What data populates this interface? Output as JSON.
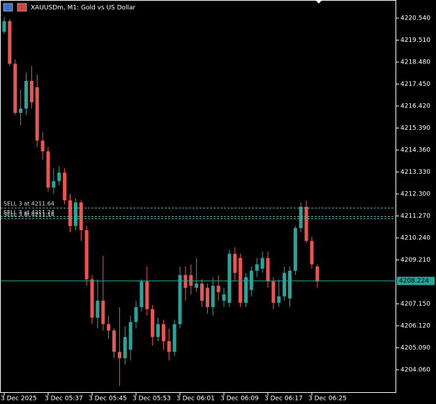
{
  "chart_data": {
    "type": "candlestick",
    "title": "XAUUSDm, M1:  Gold vs US Dollar",
    "categories": [
      "3 Dec 2025",
      null,
      null,
      null,
      null,
      null,
      null,
      null,
      "3 Dec 05:37",
      null,
      null,
      null,
      null,
      null,
      null,
      null,
      "3 Dec 05:45",
      null,
      null,
      null,
      null,
      null,
      null,
      null,
      "3 Dec 05:53",
      null,
      null,
      null,
      null,
      null,
      null,
      null,
      "3 Dec 06:01",
      null,
      null,
      null,
      null,
      null,
      null,
      null,
      "3 Dec 06:09",
      null,
      null,
      null,
      null,
      null,
      null,
      null,
      "3 Dec 06:17",
      null,
      null,
      null,
      null,
      null,
      null,
      null,
      "3 Dec 06:25",
      null
    ],
    "open": [
      4219.9,
      4220.4,
      4218.4,
      4216.1,
      4216.3,
      4217.6,
      4217.3,
      4214.8,
      4214.3,
      4212.6,
      4212.9,
      4213.3,
      4212.0,
      4210.8,
      4211.9,
      4210.6,
      4208.3,
      4206.5,
      4207.3,
      4206.2,
      4205.9,
      4204.9,
      4204.6,
      4205.0,
      4206.3,
      4207.0,
      4208.2,
      4206.9,
      4205.6,
      4206.2,
      4205.4,
      4204.9,
      4206.2,
      4208.5,
      4208.5,
      4207.9,
      4208.1,
      4207.9,
      4207.0,
      4208.0,
      4207.3,
      4207.2,
      4209.5,
      4209.3,
      4207.2,
      4207.8,
      4208.7,
      4208.8,
      4209.3,
      4208.2,
      4207.2,
      4207.5,
      4207.4,
      4208.7,
      4210.7,
      4211.7,
      4210.1,
      4208.9
    ],
    "high": [
      4220.6,
      4220.5,
      4218.6,
      4217.2,
      4218.0,
      4218.3,
      4217.9,
      4215.2,
      4214.5,
      4213.5,
      4213.6,
      4213.5,
      4212.3,
      4212.1,
      4212.0,
      4210.8,
      4208.5,
      4208.3,
      4209.4,
      4206.6,
      4206.0,
      4207.0,
      4206.1,
      4206.6,
      4207.3,
      4208.3,
      4208.9,
      4207.1,
      4206.5,
      4206.4,
      4206.0,
      4206.4,
      4208.9,
      4208.9,
      4209.0,
      4209.3,
      4208.3,
      4208.1,
      4208.4,
      4208.5,
      4207.9,
      4209.7,
      4209.8,
      4209.5,
      4208.6,
      4208.9,
      4209.3,
      4209.6,
      4209.6,
      4208.4,
      4208.3,
      4208.9,
      4208.9,
      4210.8,
      4211.9,
      4212.0,
      4210.3,
      4209.0
    ],
    "low": [
      4219.8,
      4218.3,
      4216.0,
      4215.5,
      4216.0,
      4216.3,
      4214.5,
      4213.9,
      4212.4,
      4212.3,
      4212.7,
      4211.8,
      4210.5,
      4210.6,
      4210.1,
      4208.0,
      4206.2,
      4206.0,
      4205.9,
      4205.5,
      4204.6,
      4203.3,
      4204.3,
      4204.5,
      4206.0,
      4206.8,
      4206.6,
      4205.2,
      4205.4,
      4205.0,
      4204.5,
      4204.7,
      4206.0,
      4207.3,
      4207.6,
      4207.7,
      4207.0,
      4206.7,
      4206.6,
      4207.3,
      4207.0,
      4207.0,
      4208.2,
      4207.0,
      4207.0,
      4207.5,
      4208.4,
      4208.6,
      4207.9,
      4206.9,
      4207.0,
      4207.3,
      4207.0,
      4208.5,
      4210.5,
      4210.0,
      4208.8,
      4207.9
    ],
    "close": [
      4220.4,
      4218.4,
      4216.1,
      4216.3,
      4217.6,
      4216.6,
      4214.8,
      4214.3,
      4212.6,
      4212.9,
      4213.3,
      4212.0,
      4210.8,
      4211.9,
      4210.6,
      4208.3,
      4206.5,
      4207.3,
      4206.2,
      4205.9,
      4204.9,
      4204.6,
      4205.6,
      4206.3,
      4207.0,
      4208.2,
      4206.9,
      4205.6,
      4206.2,
      4205.4,
      4204.9,
      4206.2,
      4208.5,
      4207.9,
      4208.0,
      4208.1,
      4207.3,
      4207.0,
      4208.0,
      4207.7,
      4207.6,
      4209.5,
      4208.6,
      4207.2,
      4208.4,
      4208.7,
      4209.0,
      4209.3,
      4208.2,
      4207.2,
      4207.5,
      4208.6,
      4208.7,
      4210.7,
      4211.7,
      4210.1,
      4209.0,
      4208.2
    ],
    "up_color": "#26a69a",
    "down_color": "#ef5350",
    "ylim": [
      4202.98,
      4221.39
    ],
    "yticks": [
      {
        "value": 4220.54,
        "label": "4220.540"
      },
      {
        "value": 4219.51,
        "label": "4219.510"
      },
      {
        "value": 4218.48,
        "label": "4218.480"
      },
      {
        "value": 4217.45,
        "label": "4217.450"
      },
      {
        "value": 4216.42,
        "label": "4216.420"
      },
      {
        "value": 4215.39,
        "label": "4215.390"
      },
      {
        "value": 4214.36,
        "label": "4214.360"
      },
      {
        "value": 4213.33,
        "label": "4213.330"
      },
      {
        "value": 4212.3,
        "label": "4212.300"
      },
      {
        "value": 4211.27,
        "label": "4211.270"
      },
      {
        "value": 4210.24,
        "label": "4210.240"
      },
      {
        "value": 4209.21,
        "label": "4209.210"
      },
      {
        "value": 4207.15,
        "label": "4207.150"
      },
      {
        "value": 4206.12,
        "label": "4206.120"
      },
      {
        "value": 4205.09,
        "label": "4205.090"
      },
      {
        "value": 4204.06,
        "label": "4204.060"
      }
    ],
    "orders": [
      {
        "label": "SELL 3 at 4211.64",
        "price": 4211.64
      },
      {
        "label": "SELL 3 at 4211.24",
        "price": 4211.24
      },
      {
        "label": "SELL 3 at 4211.14",
        "price": 4211.14
      }
    ],
    "order_color": "#4db6ac",
    "bid": 4208.224,
    "bid_color": "#26a69a"
  }
}
